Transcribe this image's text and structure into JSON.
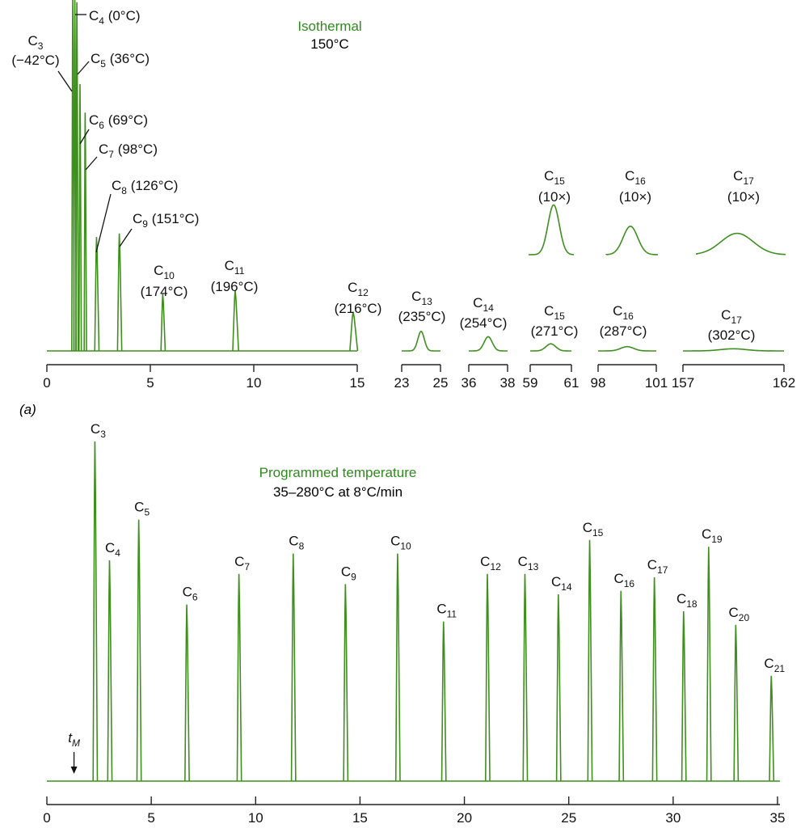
{
  "chart_data": [
    {
      "type": "line",
      "panel_label": "(a)",
      "title": "Isothermal",
      "subtitle": "150°C",
      "segments": [
        {
          "ticks": [
            "0",
            "5",
            "10",
            "15"
          ],
          "xlim": [
            0,
            15
          ]
        },
        {
          "ticks": [
            "23",
            "25"
          ],
          "xlim": [
            23,
            25
          ]
        },
        {
          "ticks": [
            "36",
            "38"
          ],
          "xlim": [
            36,
            38
          ]
        },
        {
          "ticks": [
            "59",
            "61"
          ],
          "xlim": [
            59,
            61
          ]
        },
        {
          "ticks": [
            "98",
            "101"
          ],
          "xlim": [
            98,
            101
          ]
        },
        {
          "ticks": [
            "157",
            "162"
          ],
          "xlim": [
            157,
            162
          ]
        }
      ],
      "peaks": [
        {
          "name": "C3",
          "sub": "3",
          "bp": "(−42°C)",
          "t": 1.25,
          "height": 1.0
        },
        {
          "name": "C4",
          "sub": "4",
          "bp": "(0°C)",
          "t": 1.35,
          "height": 1.0
        },
        {
          "name": "C5",
          "sub": "5",
          "bp": "(36°C)",
          "t": 1.45,
          "height": 0.98
        },
        {
          "name": "C6",
          "sub": "6",
          "bp": "(69°C)",
          "t": 1.6,
          "height": 0.75
        },
        {
          "name": "C7",
          "sub": "7",
          "bp": "(98°C)",
          "t": 1.85,
          "height": 0.67
        },
        {
          "name": "C8",
          "sub": "8",
          "bp": "(126°C)",
          "t": 2.4,
          "height": 0.32
        },
        {
          "name": "C9",
          "sub": "9",
          "bp": "(151°C)",
          "t": 3.5,
          "height": 0.33
        },
        {
          "name": "C10",
          "sub": "10",
          "bp": "(174°C)",
          "t": 5.6,
          "height": 0.16
        },
        {
          "name": "C11",
          "sub": "11",
          "bp": "(196°C)",
          "t": 9.1,
          "height": 0.17
        },
        {
          "name": "C12",
          "sub": "12",
          "bp": "(216°C)",
          "t": 14.8,
          "height": 0.11
        },
        {
          "name": "C13",
          "sub": "13",
          "bp": "(235°C)",
          "t": 24.0,
          "height": 0.055
        },
        {
          "name": "C14",
          "sub": "14",
          "bp": "(254°C)",
          "t": 37.0,
          "height": 0.04
        },
        {
          "name": "C15",
          "sub": "15",
          "bp": "(271°C)",
          "t": 60.0,
          "height": 0.02
        },
        {
          "name": "C16",
          "sub": "16",
          "bp": "(287°C)",
          "t": 99.5,
          "height": 0.012
        },
        {
          "name": "C17",
          "sub": "17",
          "bp": "(302°C)",
          "t": 159.5,
          "height": 0.006
        }
      ],
      "expanded_peaks": [
        {
          "name": "C15",
          "sub": "15",
          "note": "(10×)",
          "height": 0.14
        },
        {
          "name": "C16",
          "sub": "16",
          "note": "(10×)",
          "height": 0.08
        },
        {
          "name": "C17",
          "sub": "17",
          "note": "(10×)",
          "height": 0.06
        }
      ]
    },
    {
      "type": "line",
      "title": "Programmed temperature",
      "subtitle": "35–280°C at 8°C/min",
      "xlim": [
        0,
        35
      ],
      "ticks": [
        "0",
        "5",
        "10",
        "15",
        "20",
        "25",
        "30",
        "35"
      ],
      "marker": {
        "text": "t",
        "sub": "M",
        "t": 1.3
      },
      "peaks": [
        {
          "name": "C3",
          "sub": "3",
          "t": 2.3,
          "height": 1.0
        },
        {
          "name": "C4",
          "sub": "4",
          "t": 3.0,
          "height": 0.65
        },
        {
          "name": "C5",
          "sub": "5",
          "t": 4.4,
          "height": 0.77
        },
        {
          "name": "C6",
          "sub": "6",
          "t": 6.7,
          "height": 0.52
        },
        {
          "name": "C7",
          "sub": "7",
          "t": 9.2,
          "height": 0.61
        },
        {
          "name": "C8",
          "sub": "8",
          "t": 11.8,
          "height": 0.67
        },
        {
          "name": "C9",
          "sub": "9",
          "t": 14.3,
          "height": 0.58
        },
        {
          "name": "C10",
          "sub": "10",
          "t": 16.8,
          "height": 0.67
        },
        {
          "name": "C11",
          "sub": "11",
          "t": 19.0,
          "height": 0.47
        },
        {
          "name": "C12",
          "sub": "12",
          "t": 21.1,
          "height": 0.61
        },
        {
          "name": "C13",
          "sub": "13",
          "t": 22.9,
          "height": 0.61
        },
        {
          "name": "C14",
          "sub": "14",
          "t": 24.5,
          "height": 0.55
        },
        {
          "name": "C15",
          "sub": "15",
          "t": 26.0,
          "height": 0.71
        },
        {
          "name": "C16",
          "sub": "16",
          "t": 27.5,
          "height": 0.56
        },
        {
          "name": "C17",
          "sub": "17",
          "t": 29.1,
          "height": 0.6
        },
        {
          "name": "C18",
          "sub": "18",
          "t": 30.5,
          "height": 0.5
        },
        {
          "name": "C19",
          "sub": "19",
          "t": 31.7,
          "height": 0.69
        },
        {
          "name": "C20",
          "sub": "20",
          "t": 33.0,
          "height": 0.46
        },
        {
          "name": "C21",
          "sub": "21",
          "t": 34.7,
          "height": 0.31
        }
      ]
    }
  ],
  "colors": {
    "trace": "#3f8f1f",
    "title": "#2e8a1e",
    "axis": "#222222"
  }
}
